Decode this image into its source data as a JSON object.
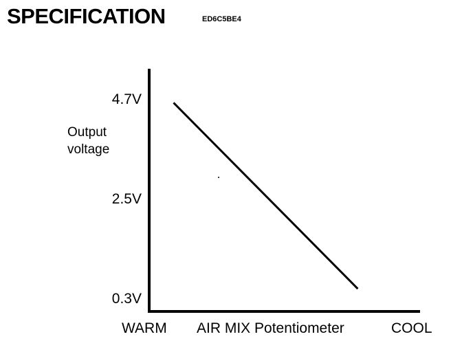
{
  "header": {
    "title": "SPECIFICATION",
    "code": "ED6C5BE4"
  },
  "chart_data": {
    "type": "line",
    "title": "",
    "ylabel": "Output voltage",
    "ylabel_lines": [
      "Output",
      "voltage"
    ],
    "xlabel": "AIR MIX Potentiometer",
    "x_ticks": [
      "WARM",
      "COOL"
    ],
    "y_ticks": [
      "4.7V",
      "2.5V",
      "0.3V"
    ],
    "y_tick_values": [
      4.7,
      2.5,
      0.3
    ],
    "series": [
      {
        "x": [
          0.09,
          0.77
        ],
        "y": [
          4.6,
          0.5
        ]
      }
    ],
    "xlim": [
      0,
      1
    ],
    "ylim": [
      0,
      5.35
    ],
    "grid": false,
    "colors": {
      "line": "#000000",
      "axis": "#000000"
    }
  }
}
